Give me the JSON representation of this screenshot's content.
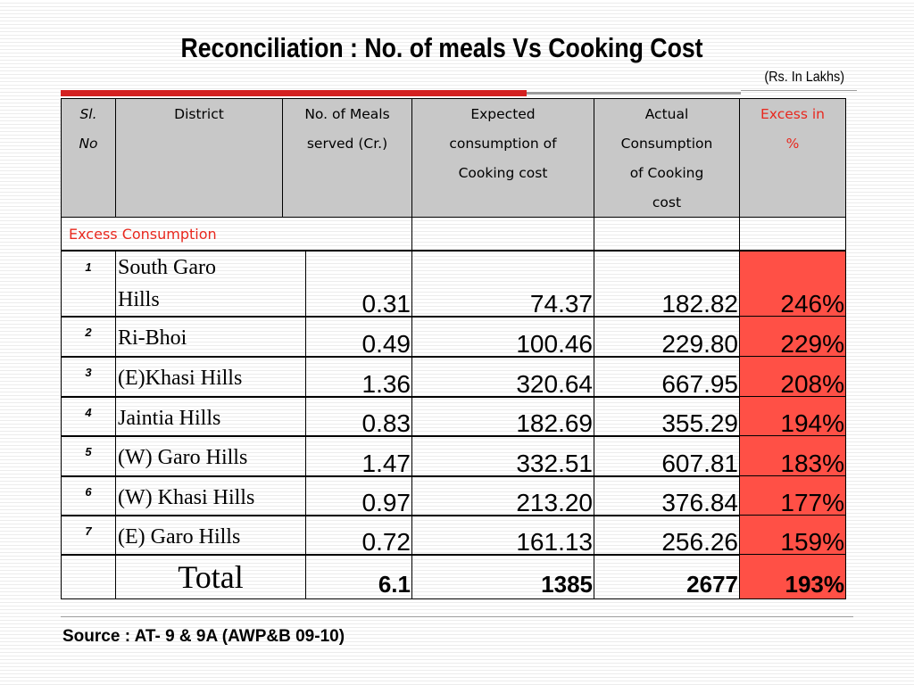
{
  "slide": {
    "title": "Reconciliation : No. of meals Vs Cooking Cost",
    "units": "(Rs. In Lakhs)",
    "source": "Source : AT- 9 & 9A (AWP&B 09-10)"
  },
  "table": {
    "headers": {
      "slno_line1": "Sl.",
      "slno_line2": "No",
      "district": "District",
      "meals_line1": "No. of Meals",
      "meals_line2": "served (Cr.)",
      "expected_line1": "Expected",
      "expected_line2": "consumption of",
      "expected_line3": "Cooking cost",
      "actual_line1": "Actual",
      "actual_line2": "Consumption",
      "actual_line3": "of Cooking",
      "actual_line4": "cost",
      "excess_line1": "Excess in",
      "excess_line2": "%"
    },
    "section_label": "Excess Consumption",
    "rows": [
      {
        "sl": "1",
        "district": "South Garo Hills",
        "meals": "0.31",
        "expected": "74.37",
        "actual": "182.82",
        "excess": "246%"
      },
      {
        "sl": "2",
        "district": "Ri-Bhoi",
        "meals": "0.49",
        "expected": "100.46",
        "actual": "229.80",
        "excess": "229%"
      },
      {
        "sl": "3",
        "district": "(E)Khasi Hills",
        "meals": "1.36",
        "expected": "320.64",
        "actual": "667.95",
        "excess": "208%"
      },
      {
        "sl": "4",
        "district": "Jaintia Hills",
        "meals": "0.83",
        "expected": "182.69",
        "actual": "355.29",
        "excess": "194%"
      },
      {
        "sl": "5",
        "district": "(W) Garo Hills",
        "meals": "1.47",
        "expected": "332.51",
        "actual": "607.81",
        "excess": "183%"
      },
      {
        "sl": "6",
        "district": "(W) Khasi Hills",
        "meals": "0.97",
        "expected": "213.20",
        "actual": "376.84",
        "excess": "177%"
      },
      {
        "sl": "7",
        "district": "(E)  Garo Hills",
        "meals": "0.72",
        "expected": "161.13",
        "actual": "256.26",
        "excess": "159%"
      }
    ],
    "total": {
      "label": "Total",
      "meals": "6.1",
      "expected": "1385",
      "actual": "2677",
      "excess": "193%"
    }
  },
  "colors": {
    "accent_red": "#d42020",
    "excess_fill": "#ff5046",
    "header_fill": "#c8c8c8",
    "excess_text": "#e8281e"
  }
}
